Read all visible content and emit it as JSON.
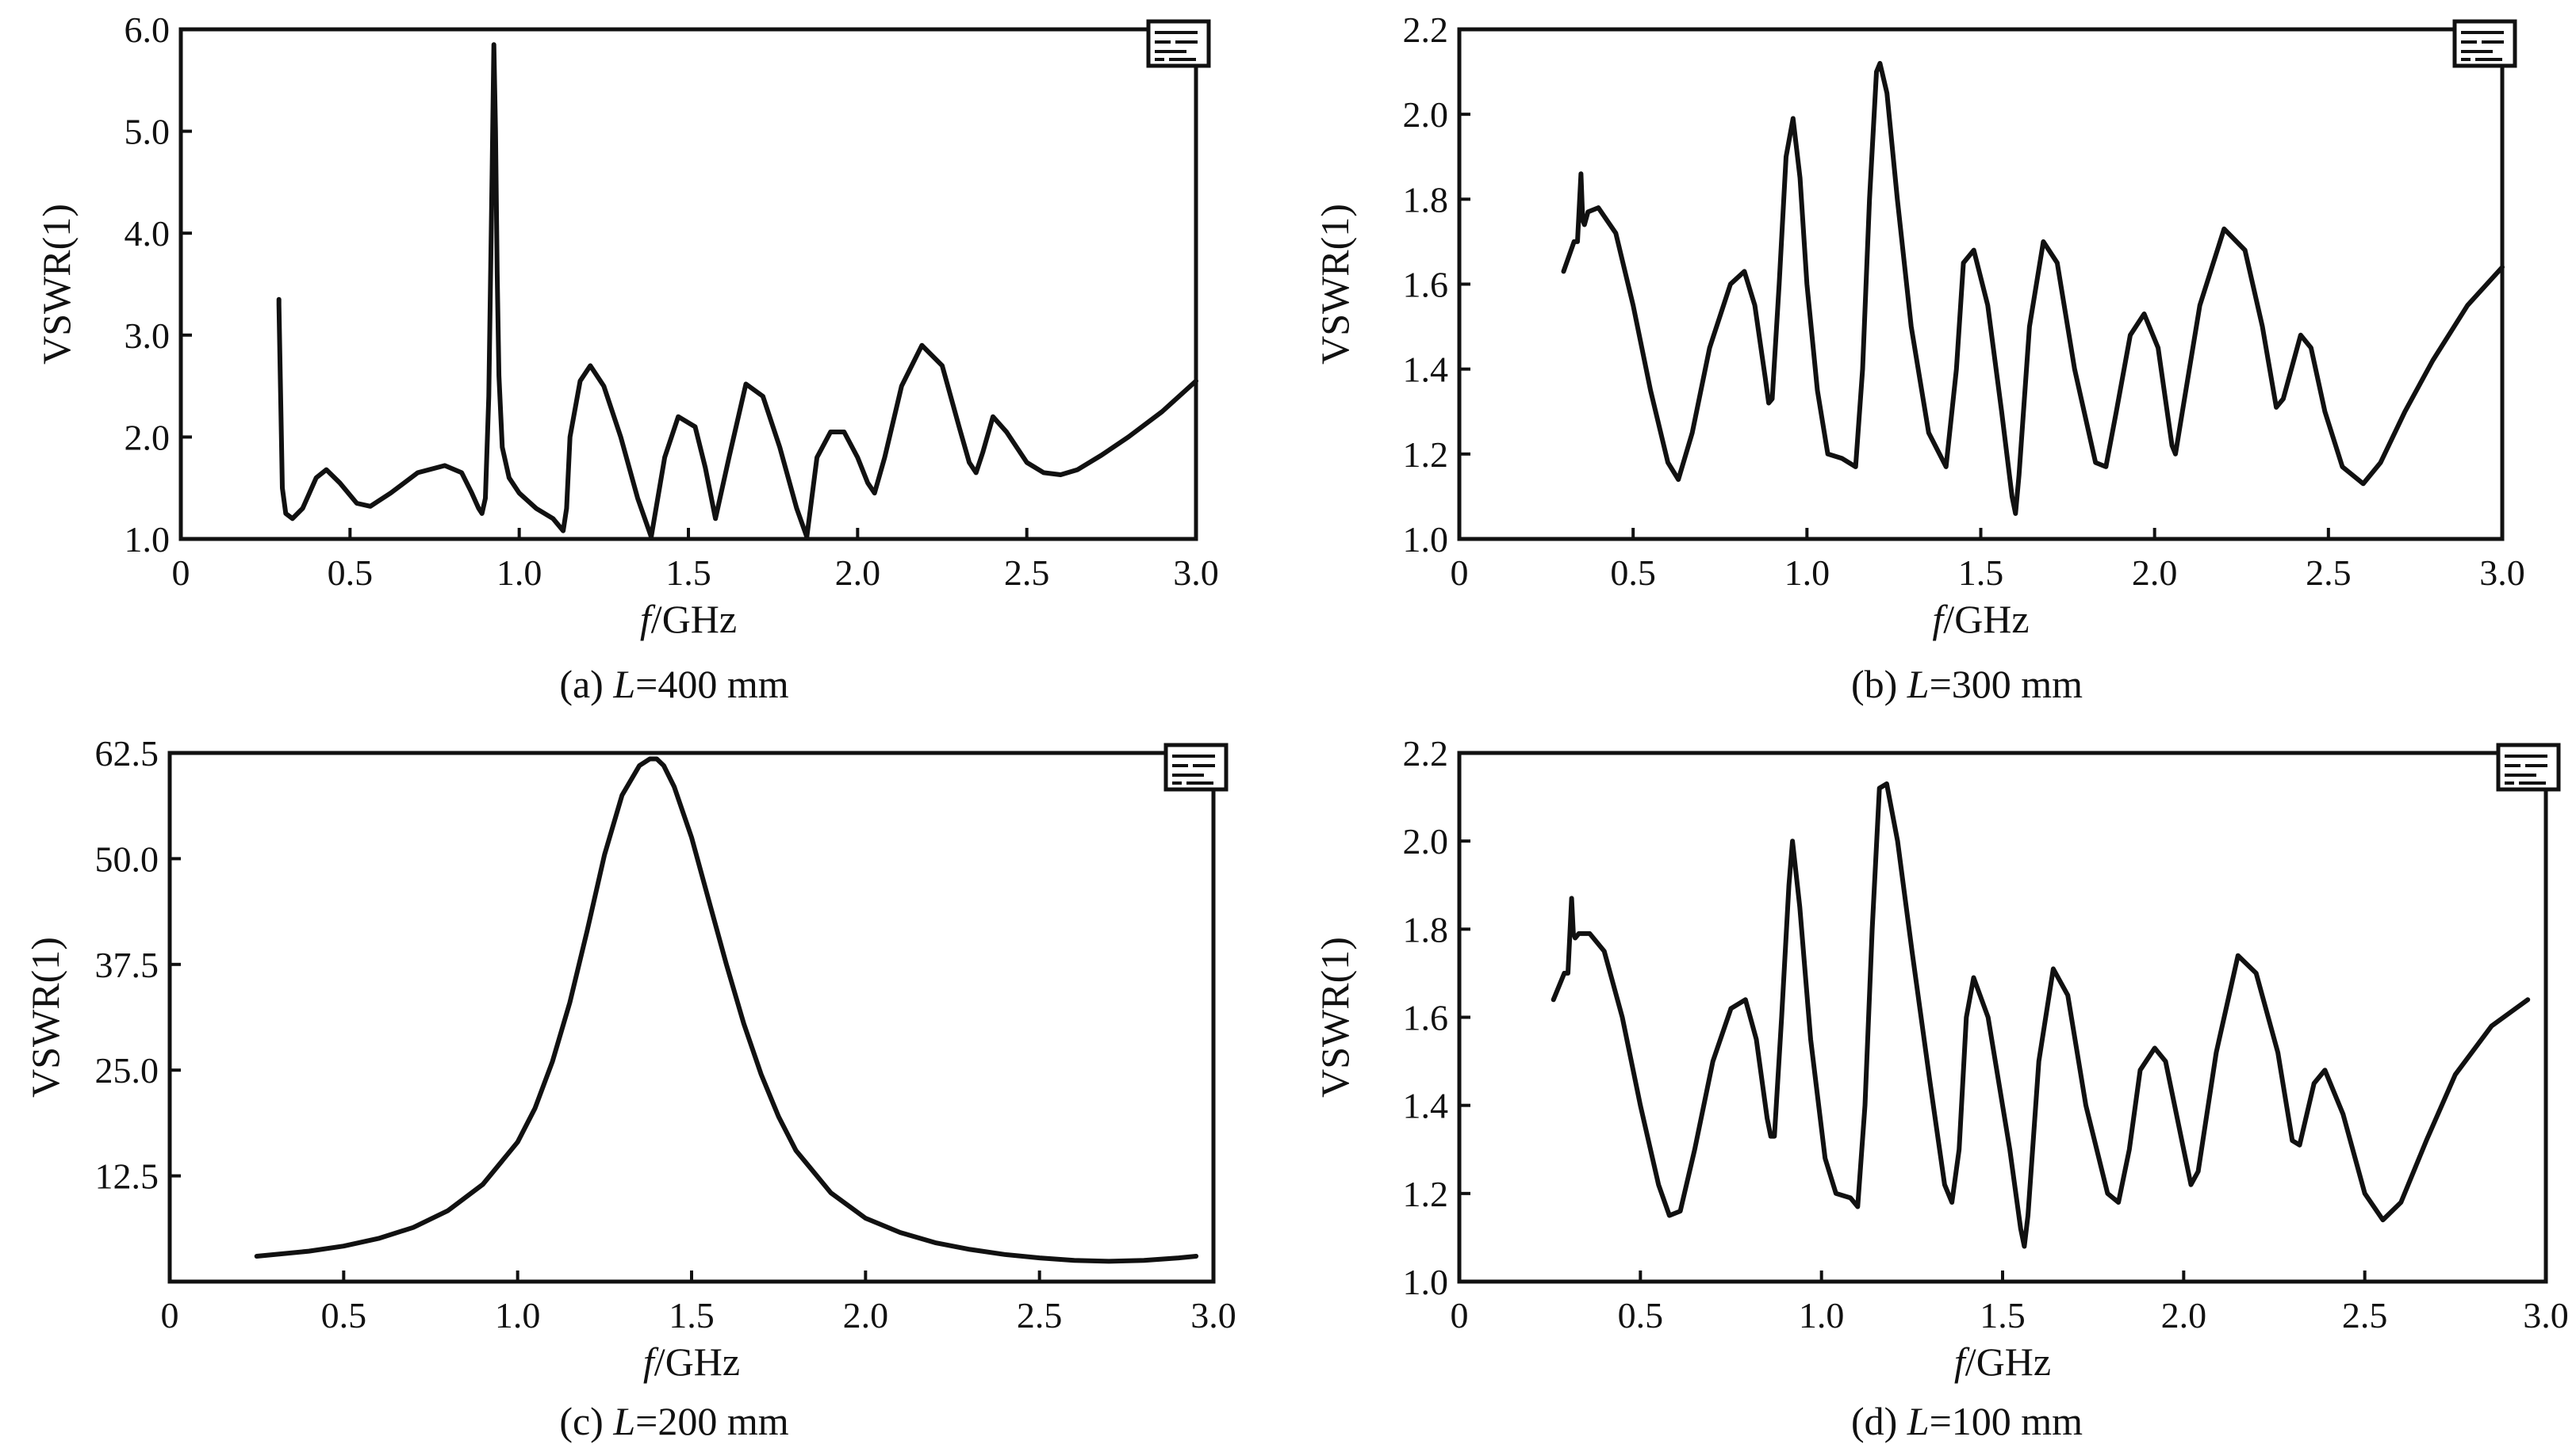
{
  "colors": {
    "ink": "#111111",
    "background": "#ffffff"
  },
  "chart_data": [
    {
      "id": "a",
      "type": "line",
      "caption_prefix": "(a) ",
      "caption_var": "L",
      "caption_suffix": "=400 mm",
      "xlabel_var": "f",
      "xlabel_unit": "/GHz",
      "ylabel": "VSWR(1)",
      "xlim": [
        0,
        3.0
      ],
      "ylim": [
        1.0,
        6.0
      ],
      "xticks": [
        "0",
        "0.5",
        "1.0",
        "1.5",
        "2.0",
        "2.5",
        "3.0"
      ],
      "xtick_values": [
        0,
        0.5,
        1.0,
        1.5,
        2.0,
        2.5,
        3.0
      ],
      "yticks": [
        "1.0",
        "2.0",
        "3.0",
        "4.0",
        "5.0",
        "6.0"
      ],
      "ytick_values": [
        1.0,
        2.0,
        3.0,
        4.0,
        5.0,
        6.0
      ],
      "legend": "top-right (illegible)",
      "grid": false,
      "series": [
        {
          "x": [
            0.29,
            0.29,
            0.3,
            0.31,
            0.33,
            0.36,
            0.4,
            0.43,
            0.47,
            0.52,
            0.56,
            0.62,
            0.7,
            0.78,
            0.83,
            0.86,
            0.88,
            0.89,
            0.9,
            0.91,
            0.92,
            0.925,
            0.93,
            0.935,
            0.94,
            0.95,
            0.97,
            1.0,
            1.05,
            1.1,
            1.13,
            1.14,
            1.15,
            1.18,
            1.21,
            1.25,
            1.3,
            1.35,
            1.39,
            1.43,
            1.47,
            1.52,
            1.55,
            1.58,
            1.62,
            1.67,
            1.72,
            1.77,
            1.82,
            1.85,
            1.88,
            1.92,
            1.96,
            2.0,
            2.03,
            2.05,
            2.08,
            2.13,
            2.19,
            2.25,
            2.3,
            2.33,
            2.35,
            2.37,
            2.4,
            2.44,
            2.5,
            2.55,
            2.6,
            2.65,
            2.72,
            2.8,
            2.9,
            3.0
          ],
          "y": [
            3.35,
            3.3,
            1.5,
            1.25,
            1.2,
            1.3,
            1.6,
            1.68,
            1.55,
            1.35,
            1.32,
            1.45,
            1.65,
            1.72,
            1.65,
            1.45,
            1.3,
            1.25,
            1.4,
            2.4,
            4.6,
            5.85,
            5.0,
            3.6,
            2.6,
            1.9,
            1.6,
            1.45,
            1.3,
            1.2,
            1.08,
            1.3,
            2.0,
            2.55,
            2.7,
            2.5,
            2.0,
            1.4,
            1.02,
            1.8,
            2.2,
            2.1,
            1.7,
            1.2,
            1.8,
            2.52,
            2.4,
            1.9,
            1.3,
            1.02,
            1.8,
            2.05,
            2.05,
            1.8,
            1.55,
            1.45,
            1.8,
            2.5,
            2.9,
            2.7,
            2.1,
            1.75,
            1.65,
            1.85,
            2.2,
            2.05,
            1.75,
            1.65,
            1.63,
            1.68,
            1.82,
            2.0,
            2.25,
            2.55
          ]
        }
      ]
    },
    {
      "id": "b",
      "type": "line",
      "caption_prefix": "(b) ",
      "caption_var": "L",
      "caption_suffix": "=300 mm",
      "xlabel_var": "f",
      "xlabel_unit": "/GHz",
      "ylabel": "VSWR(1)",
      "xlim": [
        0,
        3.0
      ],
      "ylim": [
        1.0,
        2.2
      ],
      "xticks": [
        "0",
        "0.5",
        "1.0",
        "1.5",
        "2.0",
        "2.5",
        "3.0"
      ],
      "xtick_values": [
        0,
        0.5,
        1.0,
        1.5,
        2.0,
        2.5,
        3.0
      ],
      "yticks": [
        "1.0",
        "1.2",
        "1.4",
        "1.6",
        "1.8",
        "2.0",
        "2.2"
      ],
      "ytick_values": [
        1.0,
        1.2,
        1.4,
        1.6,
        1.8,
        2.0,
        2.2
      ],
      "legend": "top-right (illegible)",
      "grid": false,
      "series": [
        {
          "x": [
            0.3,
            0.33,
            0.34,
            0.35,
            0.355,
            0.36,
            0.37,
            0.4,
            0.45,
            0.5,
            0.55,
            0.6,
            0.63,
            0.67,
            0.72,
            0.78,
            0.82,
            0.85,
            0.88,
            0.89,
            0.9,
            0.92,
            0.94,
            0.96,
            0.98,
            1.0,
            1.03,
            1.06,
            1.1,
            1.14,
            1.16,
            1.18,
            1.2,
            1.21,
            1.23,
            1.26,
            1.3,
            1.35,
            1.4,
            1.43,
            1.45,
            1.48,
            1.52,
            1.56,
            1.59,
            1.6,
            1.61,
            1.64,
            1.68,
            1.72,
            1.77,
            1.83,
            1.86,
            1.89,
            1.93,
            1.97,
            2.01,
            2.05,
            2.06,
            2.08,
            2.13,
            2.2,
            2.26,
            2.31,
            2.35,
            2.37,
            2.42,
            2.45,
            2.49,
            2.54,
            2.6,
            2.65,
            2.72,
            2.8,
            2.9,
            3.0
          ],
          "y": [
            1.63,
            1.7,
            1.7,
            1.86,
            1.75,
            1.74,
            1.77,
            1.78,
            1.72,
            1.55,
            1.35,
            1.18,
            1.14,
            1.25,
            1.45,
            1.6,
            1.63,
            1.55,
            1.38,
            1.32,
            1.33,
            1.6,
            1.9,
            1.99,
            1.85,
            1.6,
            1.35,
            1.2,
            1.19,
            1.17,
            1.4,
            1.8,
            2.1,
            2.12,
            2.05,
            1.8,
            1.5,
            1.25,
            1.17,
            1.4,
            1.65,
            1.68,
            1.55,
            1.3,
            1.1,
            1.06,
            1.15,
            1.5,
            1.7,
            1.65,
            1.4,
            1.18,
            1.17,
            1.3,
            1.48,
            1.53,
            1.45,
            1.22,
            1.2,
            1.3,
            1.55,
            1.73,
            1.68,
            1.5,
            1.31,
            1.33,
            1.48,
            1.45,
            1.3,
            1.17,
            1.13,
            1.18,
            1.3,
            1.42,
            1.55,
            1.64
          ]
        }
      ]
    },
    {
      "id": "c",
      "type": "line",
      "caption_prefix": "(c) ",
      "caption_var": "L",
      "caption_suffix": "=200 mm",
      "xlabel_var": "f",
      "xlabel_unit": "/GHz",
      "ylabel": "VSWR(1)",
      "xlim": [
        0,
        3.0
      ],
      "ylim": [
        0,
        62.5
      ],
      "xticks": [
        "0",
        "0.5",
        "1.0",
        "1.5",
        "2.0",
        "2.5",
        "3.0"
      ],
      "xtick_values": [
        0,
        0.5,
        1.0,
        1.5,
        2.0,
        2.5,
        3.0
      ],
      "yticks": [
        "12.5",
        "25.0",
        "37.5",
        "50.0",
        "62.5"
      ],
      "ytick_values": [
        12.5,
        25.0,
        37.5,
        50.0,
        62.5
      ],
      "legend": "top-right (illegible)",
      "grid": false,
      "series": [
        {
          "x": [
            0.25,
            0.4,
            0.5,
            0.6,
            0.7,
            0.8,
            0.9,
            1.0,
            1.05,
            1.1,
            1.15,
            1.2,
            1.25,
            1.3,
            1.35,
            1.38,
            1.4,
            1.42,
            1.45,
            1.5,
            1.55,
            1.6,
            1.65,
            1.7,
            1.75,
            1.8,
            1.9,
            2.0,
            2.1,
            2.2,
            2.3,
            2.4,
            2.5,
            2.6,
            2.7,
            2.8,
            2.9,
            2.95
          ],
          "y": [
            3.0,
            3.6,
            4.2,
            5.1,
            6.4,
            8.4,
            11.5,
            16.5,
            20.5,
            26.0,
            33.0,
            41.5,
            50.5,
            57.5,
            61.0,
            61.8,
            61.8,
            61.0,
            58.5,
            52.5,
            45.0,
            37.5,
            30.5,
            24.5,
            19.5,
            15.5,
            10.5,
            7.5,
            5.8,
            4.6,
            3.8,
            3.2,
            2.8,
            2.5,
            2.4,
            2.5,
            2.8,
            3.0
          ]
        }
      ]
    },
    {
      "id": "d",
      "type": "line",
      "caption_prefix": "(d) ",
      "caption_var": "L",
      "caption_suffix": "=100 mm",
      "xlabel_var": "f",
      "xlabel_unit": "/GHz",
      "ylabel": "VSWR(1)",
      "xlim": [
        0,
        3.0
      ],
      "ylim": [
        1.0,
        2.2
      ],
      "xticks": [
        "0",
        "0.5",
        "1.0",
        "1.5",
        "2.0",
        "2.5",
        "3.0"
      ],
      "xtick_values": [
        0,
        0.5,
        1.0,
        1.5,
        2.0,
        2.5,
        3.0
      ],
      "yticks": [
        "1.0",
        "1.2",
        "1.4",
        "1.6",
        "1.8",
        "2.0",
        "2.2"
      ],
      "ytick_values": [
        1.0,
        1.2,
        1.4,
        1.6,
        1.8,
        2.0,
        2.2
      ],
      "legend": "top-right (illegible)",
      "grid": false,
      "series": [
        {
          "x": [
            0.26,
            0.29,
            0.3,
            0.31,
            0.315,
            0.32,
            0.33,
            0.36,
            0.4,
            0.45,
            0.5,
            0.55,
            0.58,
            0.61,
            0.65,
            0.7,
            0.75,
            0.79,
            0.82,
            0.85,
            0.86,
            0.87,
            0.89,
            0.91,
            0.92,
            0.94,
            0.97,
            1.01,
            1.04,
            1.08,
            1.1,
            1.12,
            1.14,
            1.16,
            1.18,
            1.21,
            1.25,
            1.3,
            1.34,
            1.36,
            1.38,
            1.4,
            1.42,
            1.46,
            1.52,
            1.55,
            1.56,
            1.57,
            1.6,
            1.64,
            1.68,
            1.73,
            1.79,
            1.82,
            1.85,
            1.88,
            1.92,
            1.95,
            2.0,
            2.02,
            2.04,
            2.09,
            2.15,
            2.2,
            2.26,
            2.3,
            2.32,
            2.36,
            2.39,
            2.44,
            2.5,
            2.55,
            2.6,
            2.67,
            2.75,
            2.85,
            2.95
          ],
          "y": [
            1.64,
            1.7,
            1.7,
            1.87,
            1.79,
            1.78,
            1.79,
            1.79,
            1.75,
            1.6,
            1.4,
            1.22,
            1.15,
            1.16,
            1.3,
            1.5,
            1.62,
            1.64,
            1.55,
            1.37,
            1.33,
            1.33,
            1.6,
            1.9,
            2.0,
            1.85,
            1.55,
            1.28,
            1.2,
            1.19,
            1.17,
            1.4,
            1.8,
            2.12,
            2.13,
            2.0,
            1.75,
            1.45,
            1.22,
            1.18,
            1.3,
            1.6,
            1.69,
            1.6,
            1.3,
            1.12,
            1.08,
            1.15,
            1.5,
            1.71,
            1.65,
            1.4,
            1.2,
            1.18,
            1.3,
            1.48,
            1.53,
            1.5,
            1.3,
            1.22,
            1.25,
            1.52,
            1.74,
            1.7,
            1.52,
            1.32,
            1.31,
            1.45,
            1.48,
            1.38,
            1.2,
            1.14,
            1.18,
            1.32,
            1.47,
            1.58,
            1.64
          ]
        }
      ]
    }
  ]
}
